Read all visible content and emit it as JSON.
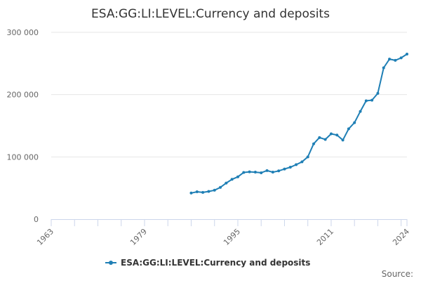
{
  "chart_data": {
    "type": "line",
    "title": "ESA:GG:LI:LEVEL:Currency and deposits",
    "source_label": "Source:",
    "xlabel": "",
    "ylabel": "",
    "x_range": [
      1963,
      2024
    ],
    "ylim": [
      0,
      300000
    ],
    "y_ticks": [
      0,
      100000,
      200000,
      300000
    ],
    "y_tick_labels": [
      "0",
      "100 000",
      "200 000",
      "300 000"
    ],
    "x_tick_labels": [
      "1963",
      "1979",
      "1995",
      "2011",
      "2024"
    ],
    "x_tick_values": [
      1963,
      1979,
      1995,
      2011,
      2024
    ],
    "grid": true,
    "legend_position": "bottom",
    "colors": {
      "series": "#1f7fb5"
    },
    "series": [
      {
        "name": "ESA:GG:LI:LEVEL:Currency and deposits",
        "x": [
          1987,
          1988,
          1989,
          1990,
          1991,
          1992,
          1993,
          1994,
          1995,
          1996,
          1997,
          1998,
          1999,
          2000,
          2001,
          2002,
          2003,
          2004,
          2005,
          2006,
          2007,
          2008,
          2009,
          2010,
          2011,
          2012,
          2013,
          2014,
          2015,
          2016,
          2017,
          2018,
          2019,
          2020,
          2021,
          2022,
          2023,
          2024
        ],
        "values": [
          42000,
          44000,
          43000,
          44500,
          46500,
          51000,
          58000,
          64000,
          68000,
          75000,
          76000,
          75500,
          74500,
          78000,
          75500,
          77500,
          80500,
          83500,
          87500,
          92000,
          100000,
          121000,
          131000,
          128000,
          137000,
          135000,
          127000,
          145000,
          155000,
          173000,
          190000,
          191000,
          202000,
          243000,
          257000,
          255000,
          259000,
          265000
        ]
      }
    ]
  }
}
